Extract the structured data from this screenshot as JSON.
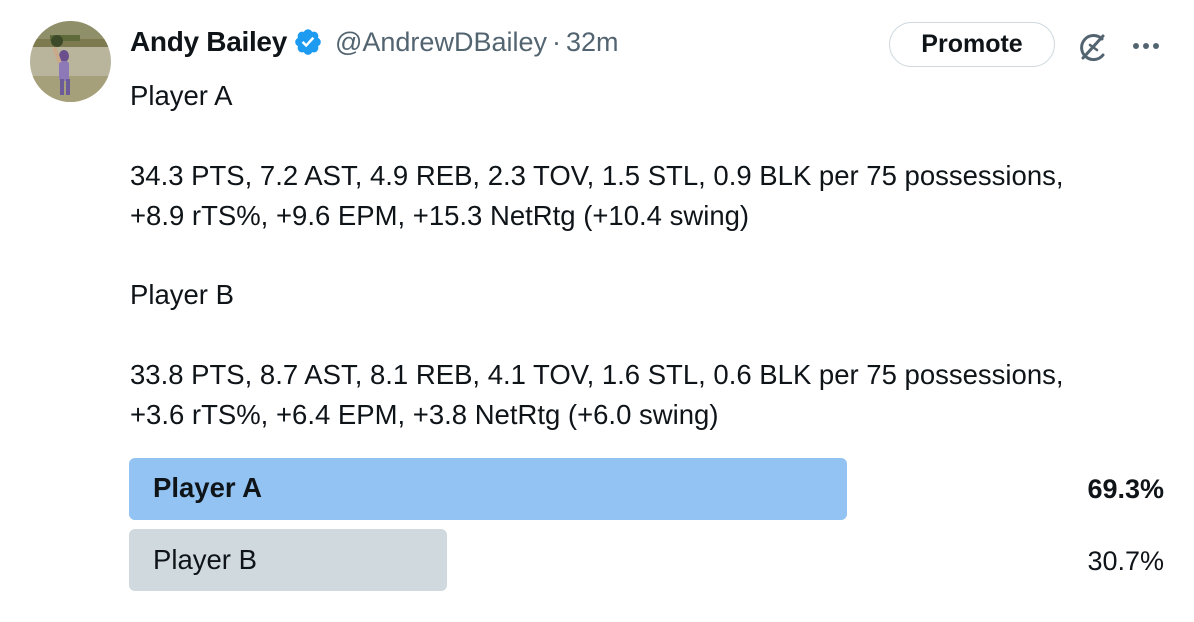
{
  "tweet": {
    "author_name": "Andy Bailey",
    "handle": "@AndrewDBailey",
    "separator": "·",
    "time": "32m",
    "promote_label": "Promote",
    "lines": [
      "Player A",
      "34.3 PTS, 7.2 AST, 4.9 REB, 2.3 TOV, 1.5 STL, 0.9 BLK per 75 possessions,",
      "+8.9 rTS%, +9.6 EPM, +15.3 NetRtg (+10.4 swing)",
      "Player B",
      "33.8 PTS, 8.7 AST, 8.1 REB, 4.1 TOV, 1.6 STL, 0.6 BLK per 75 possessions,",
      "+3.6 rTS%, +6.4 EPM, +3.8 NetRtg (+6.0 swing)"
    ]
  },
  "poll": {
    "options": [
      {
        "label": "Player A",
        "percent_text": "69.3%",
        "percent": 69.3,
        "winner": true
      },
      {
        "label": "Player B",
        "percent_text": "30.7%",
        "percent": 30.7,
        "winner": false
      }
    ]
  },
  "colors": {
    "winner_bar": "#93c3f2",
    "loser_bar": "#cfd9de",
    "verified": "#1d9bf0",
    "secondary_text": "#536471"
  },
  "icons": {
    "avatar": "avatar-photo",
    "verified": "verified-badge-icon",
    "grok": "grok-icon",
    "more": "more-icon"
  }
}
